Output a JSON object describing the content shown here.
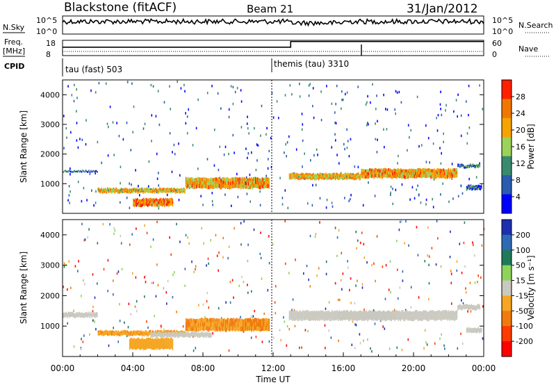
{
  "header": {
    "title": "Blackstone (fitACF)",
    "beam": "Beam 21",
    "date": "31/Jan/2012"
  },
  "top_panels": {
    "nsky_label": "N.Sky",
    "nsky_ticks": [
      "10^5",
      "10^0"
    ],
    "nsearch_label": "N.Search",
    "nsearch_ticks": [
      "10^5",
      "10^0"
    ],
    "freq_label_1": "Freq.",
    "freq_label_2": "[MHz]",
    "freq_ticks": [
      "18",
      "8"
    ],
    "nave_label": "Nave",
    "nave_ticks": [
      "60",
      "0"
    ],
    "cpid_label": "CPID",
    "cpid_modes": [
      {
        "label": "tau (fast) 503",
        "start_hour": 0
      },
      {
        "label": "themis (tau) 3310",
        "start_hour": 12.0
      }
    ],
    "freq_steps": [
      {
        "hour": 0,
        "level": 0.55
      },
      {
        "hour": 13.0,
        "level": 0.92
      }
    ]
  },
  "chart_data": [
    {
      "type": "heatmap",
      "name": "power",
      "ylabel": "Slant Range [km]",
      "xlim_hours": [
        0,
        24
      ],
      "ylim": [
        0,
        4500
      ],
      "yticks": [
        "1000",
        "2000",
        "3000",
        "4000"
      ],
      "colorbar": {
        "label": "Power [dB]",
        "ticks": [
          "28",
          "24",
          "20",
          "16",
          "12",
          "8",
          "4"
        ],
        "range": [
          0,
          32
        ]
      },
      "bands": [
        {
          "h0": 0.0,
          "h1": 2.0,
          "r0": 1400,
          "r1": 1450,
          "value": 9
        },
        {
          "h0": 2.0,
          "h1": 7.0,
          "r0": 700,
          "r1": 850,
          "value": 20
        },
        {
          "h0": 7.0,
          "h1": 11.8,
          "r0": 850,
          "r1": 1200,
          "value": 22
        },
        {
          "h0": 4.0,
          "h1": 6.3,
          "r0": 250,
          "r1": 500,
          "value": 24
        },
        {
          "h0": 12.9,
          "h1": 17.0,
          "r0": 1150,
          "r1": 1350,
          "value": 20
        },
        {
          "h0": 17.0,
          "h1": 22.5,
          "r0": 1200,
          "r1": 1500,
          "value": 22
        },
        {
          "h0": 22.5,
          "h1": 23.8,
          "r0": 1550,
          "r1": 1650,
          "value": 10
        },
        {
          "h0": 23.0,
          "h1": 23.9,
          "r0": 800,
          "r1": 950,
          "value": 9
        }
      ]
    },
    {
      "type": "heatmap",
      "name": "velocity",
      "ylabel": "Slant Range [km]",
      "xlabel": "Time UT",
      "xlim_hours": [
        0,
        24
      ],
      "ylim": [
        0,
        4500
      ],
      "yticks": [
        "1000",
        "2000",
        "3000",
        "4000"
      ],
      "xticks": [
        "00:00",
        "04:00",
        "08:00",
        "12:00",
        "16:00",
        "20:00",
        "00:00"
      ],
      "colorbar": {
        "label": "Velocity [m s⁻¹]",
        "ticks": [
          "200",
          "100",
          "50",
          "15",
          "-15",
          "-50",
          "-100",
          "-200"
        ]
      },
      "bands": [
        {
          "h0": 0.0,
          "h1": 2.0,
          "r0": 1300,
          "r1": 1450,
          "value": 0
        },
        {
          "h0": 2.0,
          "h1": 7.0,
          "r0": 700,
          "r1": 850,
          "value": -40
        },
        {
          "h0": 7.0,
          "h1": 11.8,
          "r0": 850,
          "r1": 1250,
          "value": -50
        },
        {
          "h0": 3.8,
          "h1": 6.3,
          "r0": 250,
          "r1": 600,
          "value": -30
        },
        {
          "h0": 5.0,
          "h1": 8.5,
          "r0": 650,
          "r1": 800,
          "value": 0
        },
        {
          "h0": 12.9,
          "h1": 22.5,
          "r0": 1200,
          "r1": 1500,
          "value": 0
        },
        {
          "h0": 22.5,
          "h1": 23.8,
          "r0": 1550,
          "r1": 1700,
          "value": 0
        },
        {
          "h0": 23.0,
          "h1": 23.9,
          "r0": 800,
          "r1": 950,
          "value": 0
        }
      ]
    }
  ],
  "colors": {
    "power": [
      "#0000ff",
      "#2a5db0",
      "#3a8a70",
      "#9bd25a",
      "#f5a300",
      "#f07800",
      "#ff2000"
    ],
    "velocity": [
      "#1e2fb0",
      "#2f6ab5",
      "#1f7a5a",
      "#8fd35a",
      "#c9c9c0",
      "#f5a623",
      "#f07a10",
      "#ff3b00",
      "#ff0000"
    ]
  }
}
